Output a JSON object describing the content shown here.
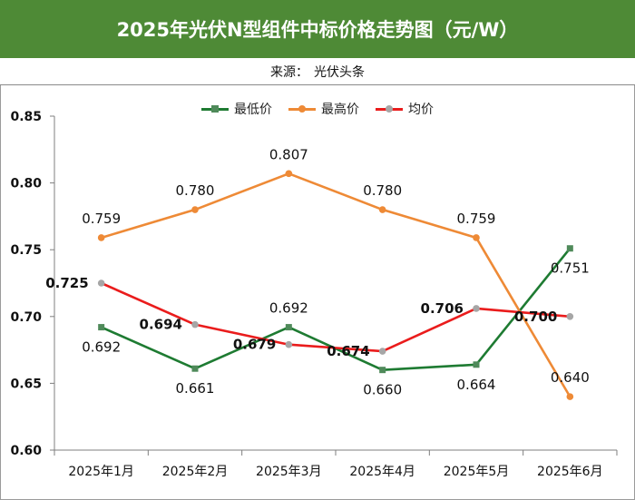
{
  "header": {
    "title": "2025年光伏N型组件中标价格走势图（元/W）",
    "source_label": "来源：",
    "source_value": "光伏头条"
  },
  "chart_data": {
    "type": "line",
    "title": "2025年光伏N型组件中标价格走势图（元/W）",
    "xlabel": "",
    "ylabel": "",
    "categories": [
      "2025年1月",
      "2025年2月",
      "2025年3月",
      "2025年4月",
      "2025年5月",
      "2025年6月"
    ],
    "ylim": [
      0.6,
      0.85
    ],
    "yticks": [
      "0.60",
      "0.65",
      "0.70",
      "0.75",
      "0.80",
      "0.85"
    ],
    "legend_position": "top",
    "series": [
      {
        "name": "最低价",
        "color": "#1e7b32",
        "marker": "square",
        "marker_color": "#4f8a5a",
        "values": [
          0.692,
          0.661,
          0.692,
          0.66,
          0.664,
          0.751
        ],
        "labels": [
          "0.692",
          "0.661",
          "0.692",
          "0.660",
          "0.664",
          "0.751"
        ],
        "label_weight": "normal",
        "label_offsets": [
          "below",
          "below",
          "above",
          "below",
          "below",
          "below"
        ]
      },
      {
        "name": "最高价",
        "color": "#ee8a36",
        "marker": "circle",
        "marker_color": "#ee8a36",
        "values": [
          0.759,
          0.78,
          0.807,
          0.78,
          0.759,
          0.64
        ],
        "labels": [
          "0.759",
          "0.780",
          "0.807",
          "0.780",
          "0.759",
          "0.640"
        ],
        "label_weight": "normal",
        "label_offsets": [
          "above",
          "above",
          "above",
          "above",
          "above",
          "above"
        ]
      },
      {
        "name": "均价",
        "color": "#ea1c1c",
        "marker": "circle",
        "marker_color": "#a6a6a6",
        "values": [
          0.725,
          0.694,
          0.679,
          0.674,
          0.706,
          0.7
        ],
        "labels": [
          "0.725",
          "0.694",
          "0.679",
          "0.674",
          "0.706",
          "0.700"
        ],
        "label_weight": "bold",
        "label_offsets": [
          "left",
          "left",
          "left",
          "left",
          "left",
          "left"
        ]
      }
    ]
  }
}
